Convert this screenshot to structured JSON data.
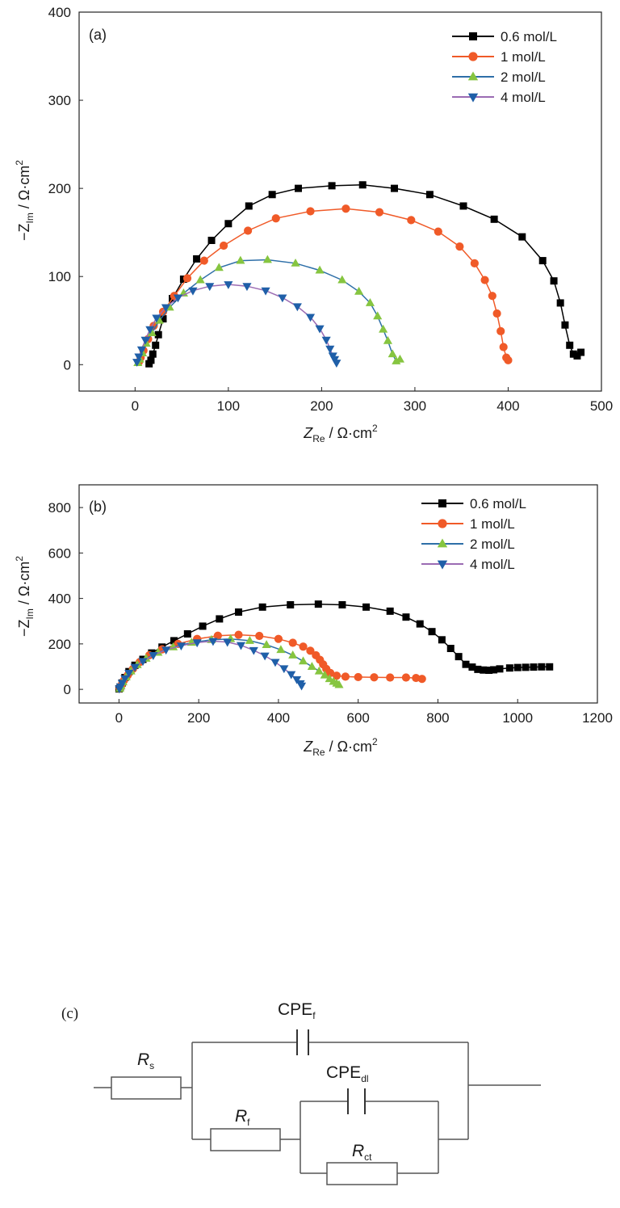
{
  "colors": {
    "c0_6": "#000000",
    "c1": "#f05a28",
    "c2": "#86c540",
    "c2_line": "#2e6fa8",
    "c4": "#1f5fa8",
    "c4_line": "#9b6bb3"
  },
  "chart_data": [
    {
      "type": "line",
      "panel": "(a)",
      "xlabel": {
        "main": "Z",
        "sub": "Re",
        "unit": " / Ω·cm",
        "sup": "2"
      },
      "ylabel": {
        "main": "−Z",
        "sub": "Im",
        "unit": " / Ω·cm",
        "sup": "2"
      },
      "xlim": [
        -60,
        500
      ],
      "ylim": [
        -30,
        400
      ],
      "xticks": [
        "0",
        "100",
        "200",
        "300",
        "400",
        "500"
      ],
      "yticks": [
        "0",
        "100",
        "200",
        "300",
        "400"
      ],
      "xtick_values": [
        0,
        100,
        200,
        300,
        400,
        500
      ],
      "ytick_values": [
        0,
        100,
        200,
        300,
        400
      ],
      "legend_position": "top-right",
      "series": [
        {
          "name": "0.6 mol/L",
          "color": "#000000",
          "line": "#000000",
          "marker": "square",
          "x": [
            15,
            17,
            19,
            22,
            25,
            30,
            40,
            52,
            66,
            82,
            100,
            122,
            147,
            175,
            211,
            244,
            278,
            316,
            352,
            385,
            415,
            437,
            449,
            456,
            461,
            466,
            470,
            474,
            478
          ],
          "y": [
            1,
            5,
            12,
            22,
            34,
            52,
            75,
            97,
            120,
            141,
            160,
            180,
            193,
            200,
            203,
            204,
            200,
            193,
            180,
            165,
            145,
            118,
            95,
            70,
            45,
            22,
            12,
            10,
            14
          ]
        },
        {
          "name": "1 mol/L",
          "color": "#f05a28",
          "line": "#f05a28",
          "marker": "circle",
          "x": [
            4,
            6,
            9,
            14,
            20,
            30,
            42,
            56,
            74,
            95,
            121,
            151,
            188,
            226,
            262,
            296,
            325,
            348,
            364,
            375,
            383,
            388,
            392,
            395,
            398,
            400
          ],
          "y": [
            3,
            8,
            16,
            29,
            44,
            60,
            78,
            98,
            118,
            135,
            152,
            166,
            174,
            177,
            173,
            164,
            151,
            134,
            115,
            96,
            78,
            58,
            38,
            20,
            8,
            5
          ]
        },
        {
          "name": "2 mol/L",
          "color": "#86c540",
          "line": "#2e6fa8",
          "marker": "triangle-up",
          "x": [
            3,
            5,
            8,
            12,
            18,
            26,
            37,
            52,
            70,
            90,
            113,
            142,
            172,
            198,
            222,
            240,
            252,
            260,
            266,
            271,
            276,
            280,
            284
          ],
          "y": [
            2,
            6,
            13,
            24,
            36,
            50,
            65,
            81,
            96,
            110,
            118,
            119,
            115,
            107,
            96,
            83,
            70,
            55,
            40,
            27,
            12,
            4,
            6
          ]
        },
        {
          "name": "4 mol/L",
          "color": "#1f5fa8",
          "line": "#9b6bb3",
          "marker": "triangle-down",
          "x": [
            2,
            4,
            7,
            11,
            16,
            23,
            33,
            46,
            62,
            80,
            100,
            120,
            140,
            158,
            174,
            188,
            198,
            205,
            209,
            212,
            214,
            216
          ],
          "y": [
            3,
            9,
            17,
            28,
            40,
            53,
            65,
            76,
            84,
            89,
            91,
            89,
            84,
            76,
            66,
            54,
            41,
            28,
            18,
            10,
            6,
            2
          ]
        }
      ]
    },
    {
      "type": "line",
      "panel": "(b)",
      "xlabel": {
        "main": "Z",
        "sub": "Re",
        "unit": " / Ω·cm",
        "sup": "2"
      },
      "ylabel": {
        "main": "−Z",
        "sub": "Im",
        "unit": " / Ω·cm",
        "sup": "2"
      },
      "xlim": [
        -100,
        1200
      ],
      "ylim": [
        -60,
        900
      ],
      "xticks": [
        "0",
        "200",
        "400",
        "600",
        "800",
        "1000",
        "1200"
      ],
      "yticks": [
        "0",
        "200",
        "400",
        "600",
        "800"
      ],
      "xtick_values": [
        0,
        200,
        400,
        600,
        800,
        1000,
        1200
      ],
      "ytick_values": [
        0,
        200,
        400,
        600,
        800
      ],
      "legend_position": "top-right",
      "series": [
        {
          "name": "0.6 mol/L",
          "color": "#000000",
          "line": "#000000",
          "marker": "square",
          "x": [
            0,
            3,
            8,
            15,
            25,
            40,
            60,
            82,
            108,
            138,
            172,
            210,
            252,
            300,
            360,
            430,
            500,
            560,
            620,
            680,
            720,
            755,
            785,
            810,
            832,
            852,
            870,
            886,
            900,
            914,
            928,
            940,
            955,
            980,
            1000,
            1020,
            1040,
            1060,
            1080
          ],
          "y": [
            2,
            10,
            28,
            52,
            78,
            106,
            132,
            160,
            186,
            214,
            244,
            278,
            310,
            340,
            362,
            372,
            375,
            372,
            362,
            344,
            318,
            288,
            254,
            218,
            180,
            144,
            110,
            98,
            88,
            85,
            84,
            86,
            90,
            94,
            96,
            97,
            98,
            99,
            99
          ]
        },
        {
          "name": "1 mol/L",
          "color": "#f05a28",
          "line": "#f05a28",
          "marker": "circle",
          "x": [
            2,
            6,
            12,
            22,
            35,
            52,
            76,
            108,
            148,
            196,
            248,
            300,
            352,
            400,
            436,
            462,
            480,
            494,
            504,
            512,
            520,
            530,
            546,
            568,
            600,
            640,
            680,
            720,
            745,
            760
          ],
          "y": [
            5,
            18,
            38,
            62,
            90,
            120,
            150,
            176,
            200,
            222,
            236,
            240,
            235,
            222,
            205,
            188,
            170,
            150,
            130,
            110,
            90,
            72,
            60,
            56,
            54,
            53,
            52,
            52,
            50,
            46
          ]
        },
        {
          "name": "2 mol/L",
          "color": "#86c540",
          "line": "#2e6fa8",
          "marker": "triangle-up",
          "x": [
            2,
            5,
            10,
            18,
            30,
            46,
            68,
            98,
            136,
            182,
            232,
            280,
            328,
            370,
            406,
            436,
            462,
            484,
            502,
            516,
            528,
            538,
            546,
            552
          ],
          "y": [
            3,
            14,
            32,
            54,
            80,
            108,
            136,
            162,
            186,
            206,
            218,
            222,
            214,
            196,
            174,
            150,
            124,
            100,
            80,
            62,
            46,
            34,
            26,
            20
          ]
        },
        {
          "name": "4 mol/L",
          "color": "#1f5fa8",
          "line": "#9b6bb3",
          "marker": "triangle-down",
          "x": [
            1,
            4,
            8,
            15,
            25,
            40,
            60,
            86,
            118,
            156,
            196,
            236,
            272,
            306,
            338,
            366,
            392,
            414,
            432,
            446,
            455,
            458
          ],
          "y": [
            3,
            12,
            28,
            48,
            72,
            98,
            124,
            150,
            174,
            192,
            206,
            212,
            208,
            194,
            172,
            148,
            120,
            92,
            66,
            44,
            26,
            16
          ]
        }
      ]
    }
  ],
  "circuit": {
    "panel": "(c)",
    "rs": {
      "main": "R",
      "sub": "s"
    },
    "cpe_f": {
      "main": "CPE",
      "sub": "f"
    },
    "rf": {
      "main": "R",
      "sub": "f"
    },
    "cpe_dl": {
      "main": "CPE",
      "sub": "dl"
    },
    "rct": {
      "main": "R",
      "sub": "ct"
    }
  }
}
